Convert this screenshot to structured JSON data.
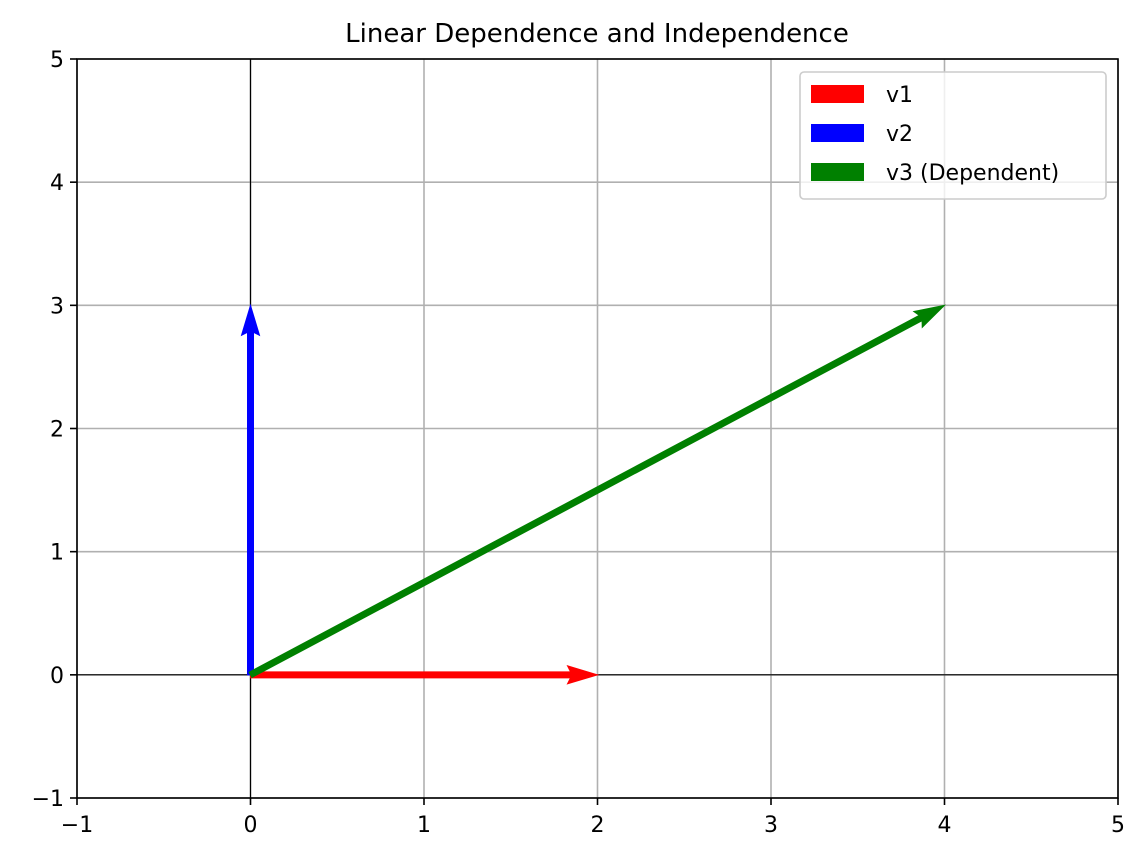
{
  "chart_data": {
    "type": "quiver",
    "title": "Linear Dependence and Independence",
    "xlabel": "",
    "ylabel": "",
    "xlim": [
      -1,
      5
    ],
    "ylim": [
      -1,
      5
    ],
    "x_ticks": [
      -1,
      0,
      1,
      2,
      3,
      4,
      5
    ],
    "y_ticks": [
      -1,
      0,
      1,
      2,
      3,
      4,
      5
    ],
    "x_tick_labels": [
      "−1",
      "0",
      "1",
      "2",
      "3",
      "4",
      "5"
    ],
    "y_tick_labels": [
      "−1",
      "0",
      "1",
      "2",
      "3",
      "4",
      "5"
    ],
    "grid": true,
    "axis_lines_at_zero": true,
    "legend_position": "top-right",
    "series": [
      {
        "name": "v1",
        "color": "#ff0000",
        "origin": [
          0,
          0
        ],
        "vector": [
          2,
          0
        ]
      },
      {
        "name": "v2",
        "color": "#0000ff",
        "origin": [
          0,
          0
        ],
        "vector": [
          0,
          3
        ]
      },
      {
        "name": "v3 (Dependent)",
        "color": "#008000",
        "origin": [
          0,
          0
        ],
        "vector": [
          4,
          3
        ]
      }
    ]
  }
}
